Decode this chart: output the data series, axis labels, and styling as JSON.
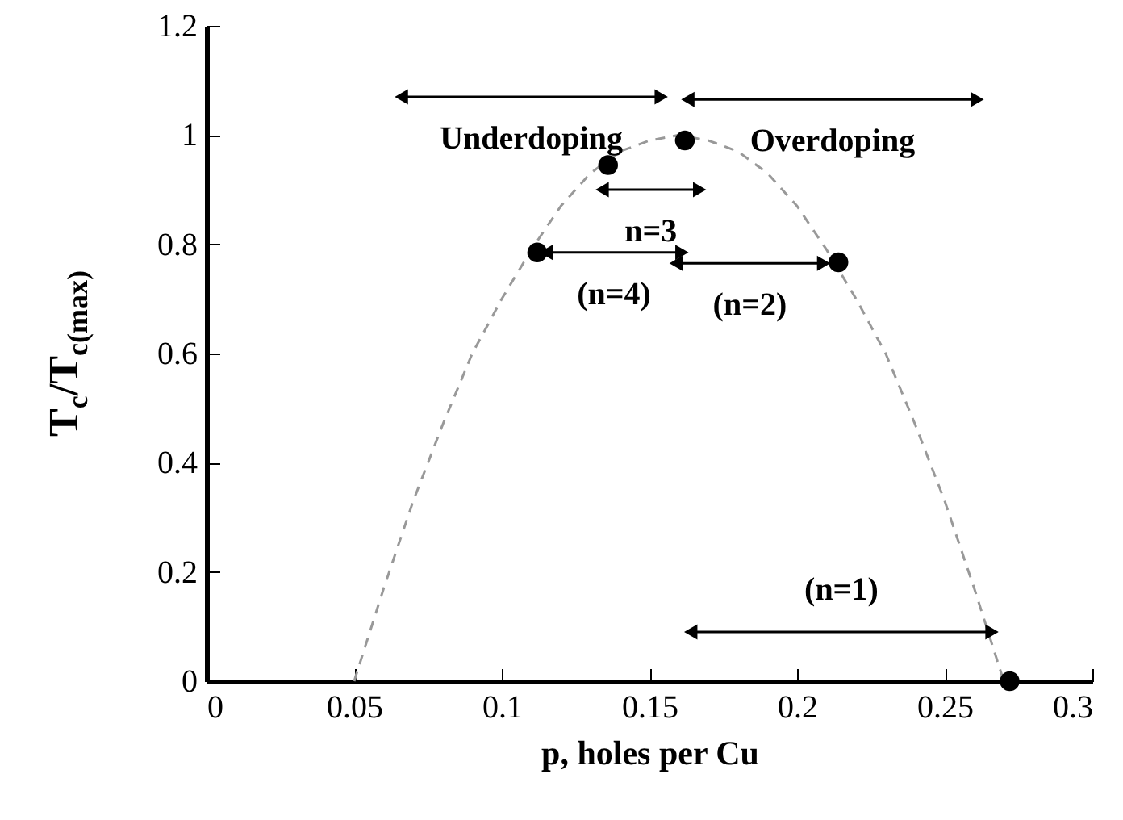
{
  "chart_data": {
    "type": "scatter",
    "xlabel": "p, holes per Cu",
    "ylabel": "T$_{c}$/T$_{c(max)}$",
    "xlim": [
      0,
      0.3
    ],
    "xticks": [
      0,
      0.05,
      0.1,
      0.15,
      0.2,
      0.25,
      0.3
    ],
    "ylim": [
      0,
      1.2
    ],
    "yticks": [
      0,
      0.2,
      0.4,
      0.6,
      0.8,
      1,
      1.2
    ],
    "grid": false,
    "series": [
      {
        "type": "line",
        "line_style": "dashed",
        "marker": "none",
        "color": "#999999",
        "x": [
          0.05,
          0.06,
          0.07,
          0.08,
          0.09,
          0.1,
          0.11,
          0.12,
          0.13,
          0.14,
          0.15,
          0.16,
          0.17,
          0.18,
          0.19,
          0.2,
          0.21,
          0.22,
          0.23,
          0.24,
          0.25,
          0.26,
          0.27
        ],
        "values": [
          0,
          0.17,
          0.33,
          0.47,
          0.6,
          0.7,
          0.79,
          0.87,
          0.93,
          0.97,
          0.99,
          1,
          0.99,
          0.97,
          0.93,
          0.87,
          0.79,
          0.7,
          0.6,
          0.47,
          0.33,
          0.17,
          0
        ]
      },
      {
        "marker": "circle",
        "color": "#000000",
        "x": [
          0.112,
          0.136,
          0.162,
          0.214,
          0.272
        ],
        "values": [
          0.785,
          0.945,
          0.99,
          0.767,
          0
        ]
      },
      {
        "type": "line",
        "line_style": "solid",
        "marker": "triangle",
        "color": "#000000",
        "x": [
          0.066,
          0.154
        ],
        "values": [
          1.07,
          1.07
        ]
      },
      {
        "type": "line",
        "line_style": "solid",
        "marker": "triangle",
        "color": "#000000",
        "x": [
          0.163,
          0.261
        ],
        "values": [
          1.065,
          1.065
        ]
      },
      {
        "type": "line",
        "line_style": "solid",
        "marker": "triangle",
        "color": "#000000",
        "x": [
          0.134,
          0.167
        ],
        "values": [
          0.9,
          0.9
        ]
      },
      {
        "type": "line",
        "line_style": "solid",
        "marker": "triangle",
        "color": "#000000",
        "x": [
          0.115,
          0.161
        ],
        "values": [
          0.785,
          0.785
        ]
      },
      {
        "type": "line",
        "line_style": "solid",
        "marker": "triangle",
        "color": "#000000",
        "x": [
          0.159,
          0.209
        ],
        "values": [
          0.765,
          0.765
        ]
      },
      {
        "type": "line",
        "line_style": "solid",
        "marker": "triangle",
        "color": "#000000",
        "x": [
          0.164,
          0.266
        ],
        "values": [
          0.09,
          0.09
        ]
      }
    ],
    "annotations": [
      "Underdoping",
      "Overdoping",
      "n=3",
      "(n=4)",
      "(n=2)",
      "(n=1)"
    ]
  }
}
